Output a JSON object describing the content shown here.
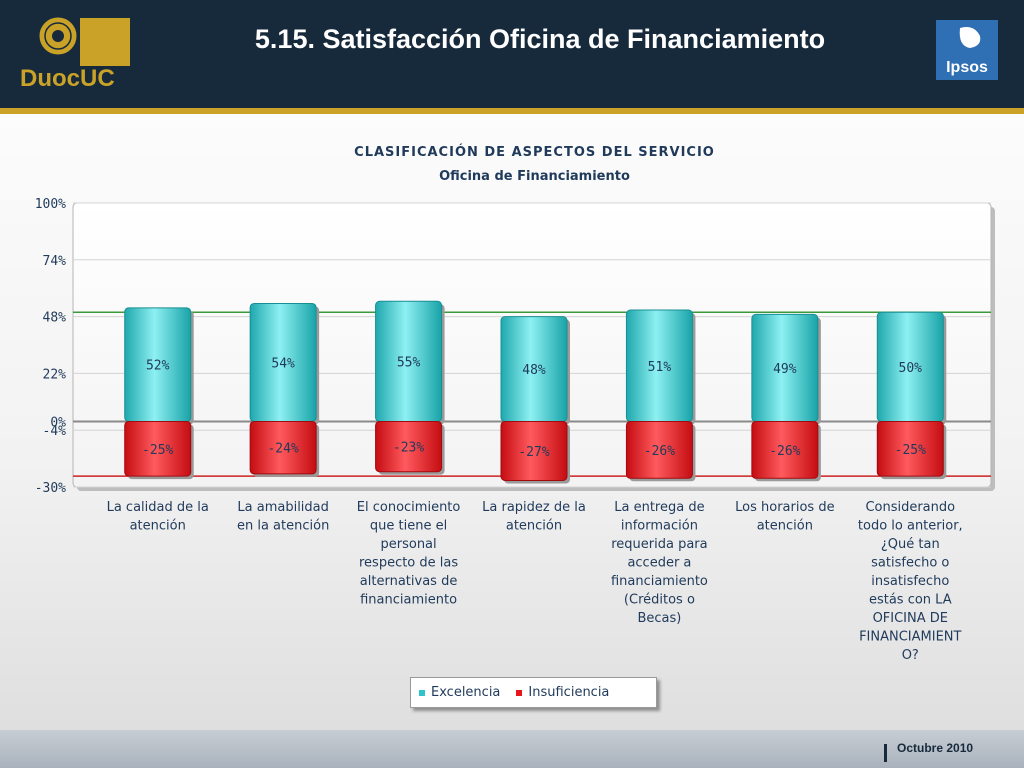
{
  "header": {
    "title": "5.15. Satisfacción Oficina de Financiamiento",
    "logo_left_text": "DuocUC",
    "logo_right_text": "Ipsos"
  },
  "footer": {
    "date": "Octubre 2010"
  },
  "colors": {
    "header_bg": "#172a3c",
    "accent_gold": "#c9a227",
    "excelencia": "#2ec4c9",
    "insuficiencia": "#e8151b",
    "upper_reference_line": "#3a9a3a",
    "lower_reference_line": "#cc2222"
  },
  "chart_data": {
    "type": "bar",
    "title": "CLASIFICACIÓN DE ASPECTOS DEL SERVICIO",
    "subtitle": "Oficina de Financiamiento",
    "categories": [
      "La calidad de la atención",
      "La amabilidad en la atención",
      "El conocimiento que tiene el personal respecto de las alternativas de financiamiento",
      "La rapidez de la atención",
      "La entrega de información requerida para acceder a financiamiento (Créditos o Becas)",
      "Los horarios de atención",
      "Considerando todo lo anterior, ¿Qué tan satisfecho o insatisfecho estás con LA OFICINA DE FINANCIAMIENTO?"
    ],
    "category_label_lines": [
      [
        "La calidad de la",
        "atención"
      ],
      [
        "La amabilidad",
        "en la atención"
      ],
      [
        "El conocimiento",
        "que tiene el",
        "personal",
        "respecto de las",
        "alternativas de",
        "financiamiento"
      ],
      [
        "La rapidez de la",
        "atención"
      ],
      [
        "La entrega de",
        "información",
        "requerida para",
        "acceder a",
        "financiamiento",
        "(Créditos o",
        "Becas)"
      ],
      [
        "Los horarios de",
        "atención"
      ],
      [
        "Considerando",
        "todo lo anterior,",
        "¿Qué tan",
        "satisfecho o",
        "insatisfecho",
        "estás con LA",
        "OFICINA DE",
        "FINANCIAMIENT",
        "O?"
      ]
    ],
    "series": [
      {
        "name": "Excelencia",
        "values": [
          52,
          54,
          55,
          48,
          51,
          49,
          50
        ],
        "labels": [
          "52%",
          "54%",
          "55%",
          "48%",
          "51%",
          "49%",
          "50%"
        ]
      },
      {
        "name": "Insuficiencia",
        "values": [
          -25,
          -24,
          -23,
          -27,
          -26,
          -26,
          -25
        ],
        "labels": [
          "-25%",
          "-24%",
          "-23%",
          "-27%",
          "-26%",
          "-26%",
          "-25%"
        ]
      }
    ],
    "ylim": [
      -30,
      100
    ],
    "yticks": [
      100,
      74,
      48,
      22,
      0,
      -4,
      -30
    ],
    "ytick_labels": [
      "100%",
      "74%",
      "48%",
      "22%",
      "0%",
      "-4%",
      "-30%"
    ],
    "reference_lines": [
      50,
      -25
    ],
    "legend": {
      "placement": "bottom",
      "entries": [
        "Excelencia",
        "Insuficiencia"
      ]
    },
    "grid": true
  }
}
